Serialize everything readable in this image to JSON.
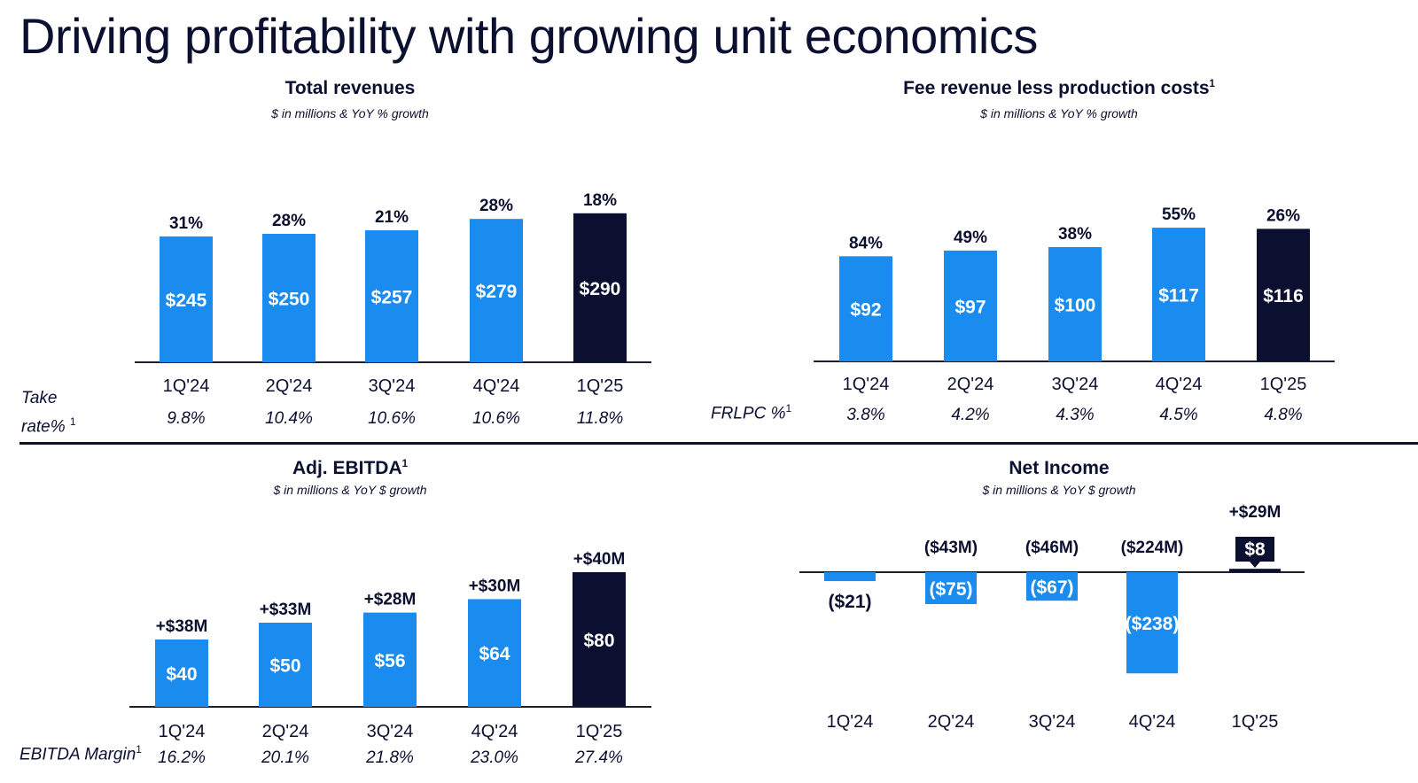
{
  "slide": {
    "title": "Driving profitability with growing unit economics"
  },
  "colors": {
    "bar_blue": "#1a8cf0",
    "bar_navy": "#0b1030",
    "text": "#0b1030"
  },
  "chart_data": [
    {
      "type": "bar",
      "title": "Total revenues",
      "subtitle": "$ in millions & YoY % growth",
      "categories": [
        "1Q'24",
        "2Q'24",
        "3Q'24",
        "4Q'24",
        "1Q'25"
      ],
      "values": [
        245,
        250,
        257,
        279,
        290
      ],
      "value_labels": [
        "$245",
        "$250",
        "$257",
        "$279",
        "$290"
      ],
      "growth_labels": [
        "31%",
        "28%",
        "21%",
        "28%",
        "18%"
      ],
      "highlight_index": 4,
      "row_label": "Take rate%",
      "row_label_sup": "1",
      "row_values": [
        "9.8%",
        "10.4%",
        "10.6%",
        "10.6%",
        "11.8%"
      ]
    },
    {
      "type": "bar",
      "title": "Fee revenue less production costs",
      "title_sup": "1",
      "subtitle": "$ in millions & YoY % growth",
      "categories": [
        "1Q'24",
        "2Q'24",
        "3Q'24",
        "4Q'24",
        "1Q'25"
      ],
      "values": [
        92,
        97,
        100,
        117,
        116
      ],
      "value_labels": [
        "$92",
        "$97",
        "$100",
        "$117",
        "$116"
      ],
      "growth_labels": [
        "84%",
        "49%",
        "38%",
        "55%",
        "26%"
      ],
      "highlight_index": 4,
      "row_label": "FRLPC %",
      "row_label_sup": "1",
      "row_values": [
        "3.8%",
        "4.2%",
        "4.3%",
        "4.5%",
        "4.8%"
      ]
    },
    {
      "type": "bar",
      "title": "Adj. EBITDA",
      "title_sup": "1",
      "subtitle": "$ in millions & YoY $ growth",
      "categories": [
        "1Q'24",
        "2Q'24",
        "3Q'24",
        "4Q'24",
        "1Q'25"
      ],
      "values": [
        40,
        50,
        56,
        64,
        80
      ],
      "value_labels": [
        "$40",
        "$50",
        "$56",
        "$64",
        "$80"
      ],
      "growth_labels": [
        "+$38M",
        "+$33M",
        "+$28M",
        "+$30M",
        "+$40M"
      ],
      "highlight_index": 4,
      "row_label": "EBITDA Margin",
      "row_label_sup": "1",
      "row_values": [
        "16.2%",
        "20.1%",
        "21.8%",
        "23.0%",
        "27.4%"
      ]
    },
    {
      "type": "bar",
      "title": "Net Income",
      "subtitle": "$ in millions & YoY $ growth",
      "categories": [
        "1Q'24",
        "2Q'24",
        "3Q'24",
        "4Q'24",
        "1Q'25"
      ],
      "values": [
        -21,
        -75,
        -67,
        -238,
        8
      ],
      "value_labels": [
        "($21)",
        "($75)",
        "($67)",
        "($238)",
        "$8"
      ],
      "growth_labels": [
        "",
        "($43M)",
        "($46M)",
        "($224M)",
        "+$29M"
      ],
      "highlight_index": 4
    }
  ]
}
